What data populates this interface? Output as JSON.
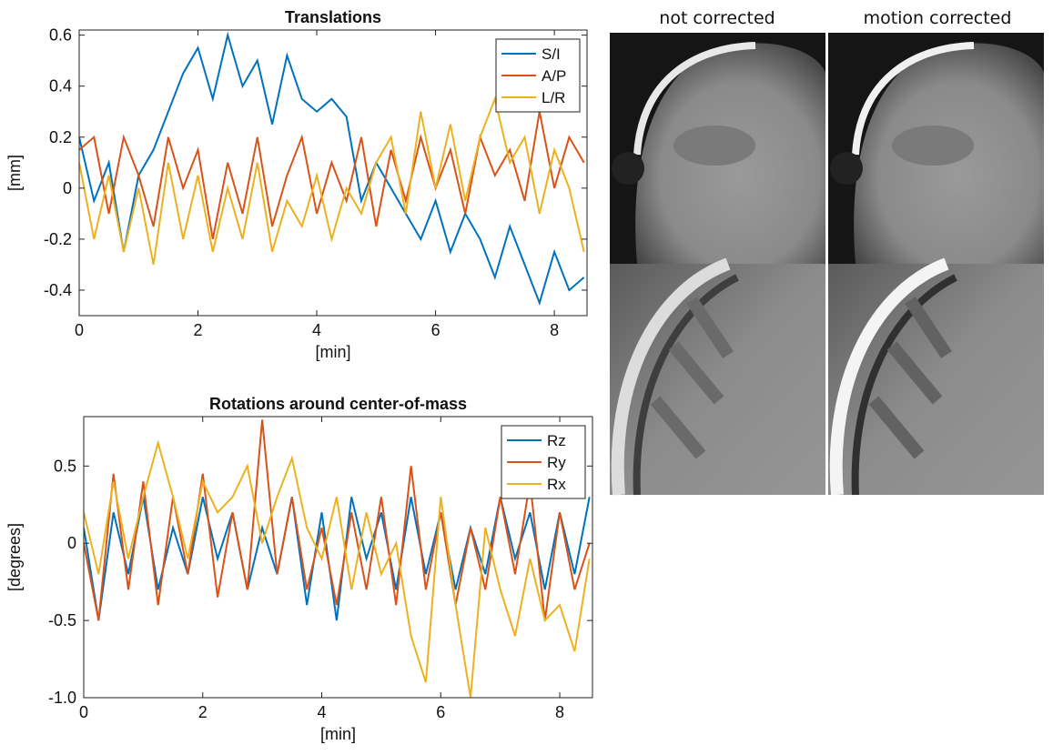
{
  "chart_data": [
    {
      "type": "line",
      "title": "Translations",
      "xlabel": "[min]",
      "ylabel": "[mm]",
      "x": [
        0,
        0.25,
        0.5,
        0.75,
        1,
        1.25,
        1.5,
        1.75,
        2,
        2.25,
        2.5,
        2.75,
        3,
        3.25,
        3.5,
        3.75,
        4,
        4.25,
        4.5,
        4.75,
        5,
        5.25,
        5.5,
        5.75,
        6,
        6.25,
        6.5,
        6.75,
        7,
        7.25,
        7.5,
        7.75,
        8,
        8.25,
        8.5
      ],
      "series": [
        {
          "name": "S/I",
          "color": "#0072BD",
          "values": [
            0.2,
            -0.05,
            0.1,
            -0.25,
            0.05,
            0.15,
            0.3,
            0.45,
            0.55,
            0.35,
            0.6,
            0.4,
            0.5,
            0.25,
            0.52,
            0.35,
            0.3,
            0.35,
            0.28,
            -0.05,
            0.1,
            0,
            -0.1,
            -0.2,
            -0.05,
            -0.25,
            -0.1,
            -0.2,
            -0.35,
            -0.15,
            -0.3,
            -0.45,
            -0.25,
            -0.4,
            -0.35
          ]
        },
        {
          "name": "A/P",
          "color": "#D95319",
          "values": [
            0.15,
            0.2,
            -0.1,
            0.2,
            0.05,
            -0.15,
            0.2,
            0,
            0.15,
            -0.2,
            0.1,
            -0.1,
            0.2,
            -0.15,
            0.05,
            0.2,
            -0.1,
            0.1,
            -0.05,
            0.2,
            -0.15,
            0.15,
            -0.05,
            0.2,
            0,
            0.15,
            -0.1,
            0.2,
            0.05,
            0.15,
            -0.05,
            0.3,
            0,
            0.2,
            0.1
          ]
        },
        {
          "name": "L/R",
          "color": "#EDB120",
          "values": [
            0.1,
            -0.2,
            0.05,
            -0.25,
            0,
            -0.3,
            0.1,
            -0.2,
            0.05,
            -0.25,
            0,
            -0.2,
            0.1,
            -0.25,
            -0.05,
            -0.15,
            0.05,
            -0.2,
            0,
            -0.1,
            0.1,
            0.2,
            -0.1,
            0.3,
            0,
            0.25,
            -0.05,
            0.2,
            0.35,
            0.1,
            0.2,
            -0.1,
            0.15,
            0,
            -0.25
          ]
        }
      ],
      "xlim": [
        0,
        8.55
      ],
      "xticks": [
        0,
        2,
        4,
        6,
        8
      ],
      "ylim": [
        -0.5,
        0.62
      ],
      "yticks": [
        -0.4,
        -0.2,
        0,
        0.2,
        0.4,
        0.6
      ],
      "grid": false,
      "legend": "upper right"
    },
    {
      "type": "line",
      "title": "Rotations around center-of-mass",
      "xlabel": "[min]",
      "ylabel": "[degrees]",
      "x": [
        0,
        0.25,
        0.5,
        0.75,
        1,
        1.25,
        1.5,
        1.75,
        2,
        2.25,
        2.5,
        2.75,
        3,
        3.25,
        3.5,
        3.75,
        4,
        4.25,
        4.5,
        4.75,
        5,
        5.25,
        5.5,
        5.75,
        6,
        6.25,
        6.5,
        6.75,
        7,
        7.25,
        7.5,
        7.75,
        8,
        8.25,
        8.5
      ],
      "series": [
        {
          "name": "Rz",
          "color": "#0072BD",
          "values": [
            0.1,
            -0.5,
            0.2,
            -0.2,
            0.3,
            -0.3,
            0.1,
            -0.2,
            0.3,
            -0.1,
            0.2,
            -0.3,
            0.1,
            -0.2,
            0.3,
            -0.4,
            0.2,
            -0.5,
            0.3,
            -0.1,
            0.2,
            -0.3,
            0.3,
            -0.2,
            0.2,
            -0.3,
            0.1,
            -0.2,
            0.3,
            -0.1,
            0.2,
            -0.3,
            0.2,
            -0.2,
            0.3
          ]
        },
        {
          "name": "Ry",
          "color": "#D95319",
          "values": [
            0,
            -0.5,
            0.45,
            -0.3,
            0.4,
            -0.4,
            0.3,
            -0.2,
            0.45,
            -0.35,
            0.2,
            -0.3,
            0.8,
            -0.2,
            0.3,
            -0.3,
            0.1,
            -0.4,
            0.2,
            -0.3,
            0.3,
            -0.4,
            0.5,
            -0.3,
            0.2,
            -0.4,
            0.1,
            -0.3,
            0.3,
            -0.2,
            0.4,
            -0.5,
            0.2,
            -0.3,
            0
          ]
        },
        {
          "name": "Rx",
          "color": "#EDB120",
          "values": [
            0.2,
            -0.2,
            0.4,
            -0.1,
            0.3,
            0.65,
            0.3,
            -0.1,
            0.4,
            0.2,
            0.3,
            0.5,
            0,
            0.3,
            0.55,
            0.1,
            -0.1,
            0.3,
            -0.3,
            0.2,
            -0.2,
            0,
            -0.6,
            -0.9,
            0.3,
            -0.4,
            -1,
            0.1,
            -0.3,
            -0.6,
            -0.1,
            -0.5,
            -0.4,
            -0.7,
            -0.1
          ]
        }
      ],
      "xlim": [
        0,
        8.55
      ],
      "xticks": [
        0,
        2,
        4,
        6,
        8
      ],
      "ylim": [
        -1.0,
        0.82
      ],
      "yticks": [
        {
          "value": -1,
          "label": "-1.0"
        },
        -0.5,
        0,
        0.5
      ],
      "grid": false,
      "legend": "upper right"
    }
  ],
  "images": {
    "labels": [
      "not corrected",
      "motion corrected"
    ]
  }
}
